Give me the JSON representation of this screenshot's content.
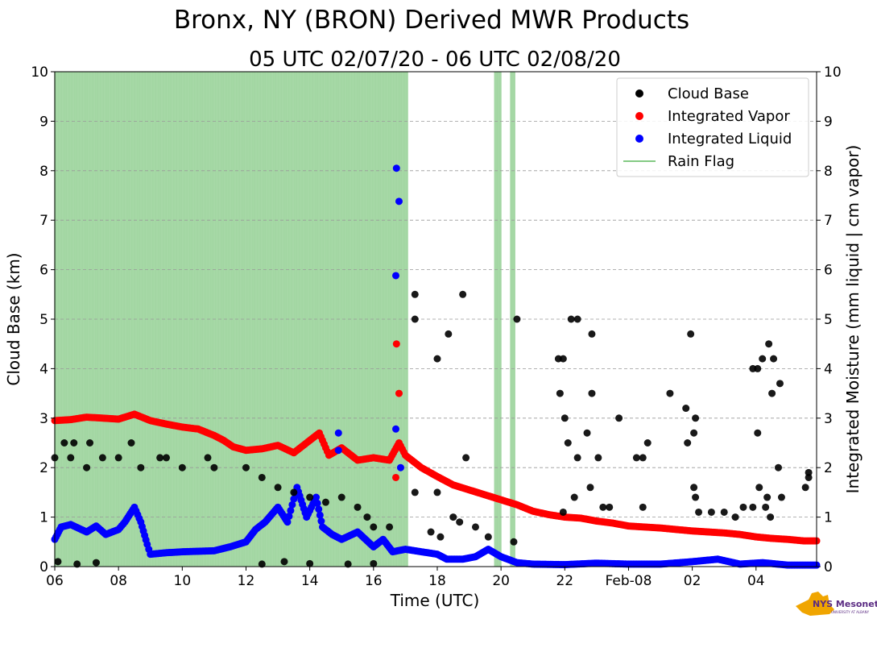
{
  "chart_data": {
    "type": "scatter",
    "title": "Bronx, NY (BRON) Derived MWR Products",
    "subtitle": "05 UTC 02/07/20 - 06 UTC 02/08/20",
    "xlabel": "Time (UTC)",
    "ylabel_left": "Cloud Base (km)",
    "ylabel_right": "Integrated Moisture (mm liquid | cm vapor)",
    "xlim_hours": [
      6.0,
      29.9
    ],
    "ylim": [
      0,
      10
    ],
    "x_ticks": [
      {
        "h": 6,
        "label": "06"
      },
      {
        "h": 8,
        "label": "08"
      },
      {
        "h": 10,
        "label": "10"
      },
      {
        "h": 12,
        "label": "12"
      },
      {
        "h": 14,
        "label": "14"
      },
      {
        "h": 16,
        "label": "16"
      },
      {
        "h": 18,
        "label": "18"
      },
      {
        "h": 20,
        "label": "20"
      },
      {
        "h": 22,
        "label": "22"
      },
      {
        "h": 24,
        "label": "Feb-08"
      },
      {
        "h": 26,
        "label": "02"
      },
      {
        "h": 28,
        "label": "04"
      }
    ],
    "y_ticks": [
      "0",
      "1",
      "2",
      "3",
      "4",
      "5",
      "6",
      "7",
      "8",
      "9",
      "10"
    ],
    "grid": "dashed horizontal",
    "legend": {
      "position": "top-right",
      "entries": [
        {
          "label": "Cloud Base",
          "color": "#000000",
          "marker": "dot"
        },
        {
          "label": "Integrated Vapor",
          "color": "#ff0000",
          "marker": "dot"
        },
        {
          "label": "Integrated Liquid",
          "color": "#0000ff",
          "marker": "dot"
        },
        {
          "label": "Rain Flag",
          "color": "#5cb85c",
          "marker": "line"
        }
      ]
    },
    "rain_flag_intervals_hours": [
      [
        6.0,
        17.1
      ],
      [
        19.8,
        20.0
      ],
      [
        20.3,
        20.45
      ]
    ],
    "series": [
      {
        "name": "Integrated Vapor",
        "color": "#ff0000",
        "points": [
          [
            6.0,
            2.95
          ],
          [
            6.5,
            2.97
          ],
          [
            7.0,
            3.02
          ],
          [
            7.5,
            3.0
          ],
          [
            8.0,
            2.98
          ],
          [
            8.5,
            3.08
          ],
          [
            9.0,
            2.95
          ],
          [
            9.5,
            2.88
          ],
          [
            10.0,
            2.82
          ],
          [
            10.5,
            2.78
          ],
          [
            11.0,
            2.65
          ],
          [
            11.3,
            2.55
          ],
          [
            11.6,
            2.42
          ],
          [
            12.0,
            2.35
          ],
          [
            12.5,
            2.38
          ],
          [
            13.0,
            2.45
          ],
          [
            13.5,
            2.3
          ],
          [
            14.0,
            2.55
          ],
          [
            14.3,
            2.7
          ],
          [
            14.6,
            2.25
          ],
          [
            15.0,
            2.4
          ],
          [
            15.5,
            2.15
          ],
          [
            16.0,
            2.2
          ],
          [
            16.5,
            2.15
          ],
          [
            16.8,
            2.5
          ],
          [
            17.0,
            2.25
          ],
          [
            17.5,
            2.0
          ],
          [
            18.0,
            1.82
          ],
          [
            18.5,
            1.65
          ],
          [
            19.0,
            1.55
          ],
          [
            19.5,
            1.45
          ],
          [
            20.0,
            1.35
          ],
          [
            20.5,
            1.25
          ],
          [
            21.0,
            1.12
          ],
          [
            21.5,
            1.05
          ],
          [
            22.0,
            1.0
          ],
          [
            22.5,
            0.98
          ],
          [
            23.0,
            0.92
          ],
          [
            23.5,
            0.88
          ],
          [
            24.0,
            0.82
          ],
          [
            24.5,
            0.8
          ],
          [
            25.0,
            0.78
          ],
          [
            25.5,
            0.75
          ],
          [
            26.0,
            0.72
          ],
          [
            26.5,
            0.7
          ],
          [
            27.0,
            0.68
          ],
          [
            27.5,
            0.65
          ],
          [
            28.0,
            0.6
          ],
          [
            28.5,
            0.57
          ],
          [
            29.0,
            0.55
          ],
          [
            29.5,
            0.52
          ],
          [
            29.9,
            0.52
          ]
        ],
        "isolated_points": [
          [
            16.72,
            4.5
          ],
          [
            16.8,
            3.5
          ],
          [
            16.7,
            1.8
          ]
        ]
      },
      {
        "name": "Integrated Liquid",
        "color": "#0000ff",
        "points": [
          [
            6.0,
            0.55
          ],
          [
            6.2,
            0.8
          ],
          [
            6.5,
            0.85
          ],
          [
            7.0,
            0.7
          ],
          [
            7.3,
            0.82
          ],
          [
            7.6,
            0.65
          ],
          [
            8.0,
            0.75
          ],
          [
            8.2,
            0.9
          ],
          [
            8.5,
            1.2
          ],
          [
            8.7,
            0.9
          ],
          [
            8.9,
            0.45
          ],
          [
            9.0,
            0.25
          ],
          [
            9.5,
            0.28
          ],
          [
            10.0,
            0.3
          ],
          [
            11.0,
            0.32
          ],
          [
            11.5,
            0.4
          ],
          [
            12.0,
            0.5
          ],
          [
            12.3,
            0.75
          ],
          [
            12.6,
            0.9
          ],
          [
            13.0,
            1.2
          ],
          [
            13.3,
            0.9
          ],
          [
            13.6,
            1.6
          ],
          [
            13.9,
            1.0
          ],
          [
            14.2,
            1.4
          ],
          [
            14.4,
            0.8
          ],
          [
            14.7,
            0.65
          ],
          [
            15.0,
            0.55
          ],
          [
            15.5,
            0.7
          ],
          [
            16.0,
            0.4
          ],
          [
            16.3,
            0.55
          ],
          [
            16.6,
            0.3
          ],
          [
            17.0,
            0.35
          ],
          [
            17.5,
            0.3
          ],
          [
            18.0,
            0.25
          ],
          [
            18.3,
            0.15
          ],
          [
            18.8,
            0.15
          ],
          [
            19.2,
            0.2
          ],
          [
            19.6,
            0.35
          ],
          [
            20.0,
            0.2
          ],
          [
            20.5,
            0.08
          ],
          [
            21.0,
            0.05
          ],
          [
            22.0,
            0.04
          ],
          [
            23.0,
            0.07
          ],
          [
            24.0,
            0.05
          ],
          [
            25.0,
            0.05
          ],
          [
            26.0,
            0.1
          ],
          [
            26.8,
            0.15
          ],
          [
            27.5,
            0.05
          ],
          [
            28.2,
            0.08
          ],
          [
            29.0,
            0.03
          ],
          [
            29.9,
            0.03
          ]
        ],
        "isolated_points": [
          [
            16.72,
            8.05
          ],
          [
            16.8,
            7.38
          ],
          [
            16.7,
            5.88
          ],
          [
            16.7,
            2.78
          ],
          [
            14.9,
            2.7
          ],
          [
            14.9,
            2.35
          ],
          [
            16.85,
            2.0
          ]
        ]
      },
      {
        "name": "Cloud Base",
        "color": "#000000",
        "points": [
          [
            17.3,
            5.5
          ],
          [
            18.8,
            5.5
          ],
          [
            17.3,
            5.0
          ],
          [
            20.5,
            5.0
          ],
          [
            22.2,
            5.0
          ],
          [
            22.4,
            5.0
          ],
          [
            18.35,
            4.7
          ],
          [
            22.85,
            4.7
          ],
          [
            25.95,
            4.7
          ],
          [
            28.4,
            4.5
          ],
          [
            18.0,
            4.2
          ],
          [
            21.8,
            4.2
          ],
          [
            21.95,
            4.2
          ],
          [
            28.2,
            4.2
          ],
          [
            28.55,
            4.2
          ],
          [
            27.9,
            4.0
          ],
          [
            28.05,
            4.0
          ],
          [
            28.75,
            3.7
          ],
          [
            21.85,
            3.5
          ],
          [
            22.85,
            3.5
          ],
          [
            25.3,
            3.5
          ],
          [
            28.5,
            3.5
          ],
          [
            25.8,
            3.2
          ],
          [
            23.7,
            3.0
          ],
          [
            22.0,
            3.0
          ],
          [
            26.1,
            3.0
          ],
          [
            22.7,
            2.7
          ],
          [
            26.05,
            2.7
          ],
          [
            28.05,
            2.7
          ],
          [
            18.9,
            2.2
          ],
          [
            22.4,
            2.2
          ],
          [
            23.05,
            2.2
          ],
          [
            24.25,
            2.2
          ],
          [
            24.45,
            2.2
          ],
          [
            22.1,
            2.5
          ],
          [
            24.6,
            2.5
          ],
          [
            25.85,
            2.5
          ],
          [
            28.7,
            2.0
          ],
          [
            29.65,
            1.9
          ],
          [
            29.65,
            1.8
          ],
          [
            29.55,
            1.6
          ],
          [
            22.8,
            1.6
          ],
          [
            26.05,
            1.6
          ],
          [
            28.1,
            1.6
          ],
          [
            22.3,
            1.4
          ],
          [
            26.1,
            1.4
          ],
          [
            28.35,
            1.4
          ],
          [
            28.8,
            1.4
          ],
          [
            17.3,
            1.5
          ],
          [
            18.0,
            1.5
          ],
          [
            23.2,
            1.2
          ],
          [
            23.4,
            1.2
          ],
          [
            24.45,
            1.2
          ],
          [
            27.6,
            1.2
          ],
          [
            27.9,
            1.2
          ],
          [
            28.3,
            1.2
          ],
          [
            26.2,
            1.1
          ],
          [
            26.6,
            1.1
          ],
          [
            27.0,
            1.1
          ],
          [
            27.35,
            1.0
          ],
          [
            28.45,
            1.0
          ],
          [
            21.95,
            1.1
          ],
          [
            18.5,
            1.0
          ],
          [
            18.7,
            0.9
          ],
          [
            19.2,
            0.8
          ],
          [
            19.6,
            0.6
          ],
          [
            20.4,
            0.5
          ],
          [
            17.8,
            0.7
          ],
          [
            18.1,
            0.6
          ],
          [
            6.0,
            2.2
          ],
          [
            6.5,
            2.2
          ],
          [
            7.0,
            2.0
          ],
          [
            7.5,
            2.2
          ],
          [
            8.0,
            2.2
          ],
          [
            8.4,
            2.5
          ],
          [
            8.7,
            2.0
          ],
          [
            9.5,
            2.2
          ],
          [
            10.0,
            2.0
          ],
          [
            11.0,
            2.0
          ],
          [
            12.0,
            2.0
          ],
          [
            12.5,
            1.8
          ],
          [
            13.0,
            1.6
          ],
          [
            13.5,
            1.5
          ],
          [
            14.0,
            1.4
          ],
          [
            14.5,
            1.3
          ],
          [
            15.0,
            1.4
          ],
          [
            15.5,
            1.2
          ],
          [
            15.8,
            1.0
          ],
          [
            16.0,
            0.8
          ],
          [
            16.5,
            0.8
          ],
          [
            6.3,
            2.5
          ],
          [
            6.6,
            2.5
          ],
          [
            7.1,
            2.5
          ],
          [
            9.3,
            2.2
          ],
          [
            10.8,
            2.2
          ],
          [
            6.1,
            0.1
          ],
          [
            6.7,
            0.05
          ],
          [
            7.3,
            0.08
          ],
          [
            12.5,
            0.05
          ],
          [
            13.2,
            0.1
          ],
          [
            14.0,
            0.06
          ],
          [
            15.2,
            0.05
          ],
          [
            16.0,
            0.06
          ]
        ]
      }
    ],
    "branding": {
      "logo_text": "NYS Mesonet",
      "logo_subtext": "UNIVERSITY AT ALBANY"
    }
  }
}
